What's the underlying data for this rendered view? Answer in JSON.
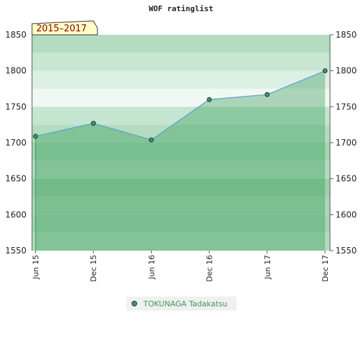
{
  "chart_data": {
    "type": "line",
    "title": "WOF ratinglist",
    "annotation": "2015–2017",
    "categories": [
      "Jun 15",
      "Dec 15",
      "Jun 16",
      "Dec 16",
      "Jun 17",
      "Dec 17"
    ],
    "series": [
      {
        "name": "TOKUNAGA Tadakatsu",
        "color": "#3b9a5a",
        "values": [
          1709,
          1727,
          1704,
          1760,
          1767,
          1800
        ]
      }
    ],
    "ylim": [
      1550,
      1850
    ],
    "yticks": [
      1550,
      1600,
      1650,
      1700,
      1750,
      1800,
      1850
    ]
  }
}
